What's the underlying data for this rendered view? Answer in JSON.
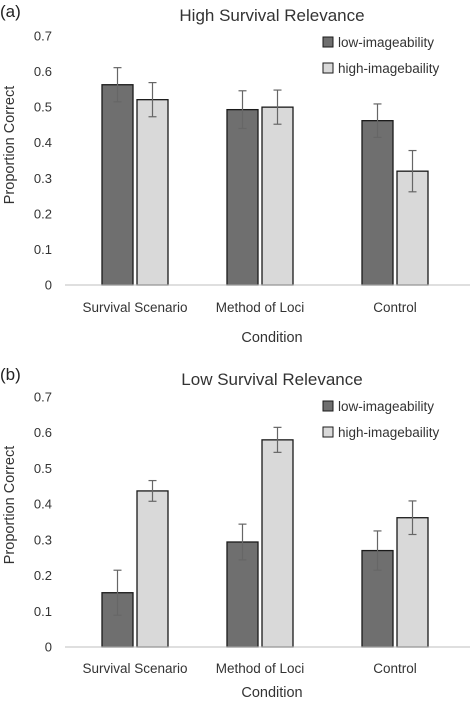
{
  "colors": {
    "low": "#6f6f6f",
    "high": "#d9d9d9",
    "bar_stroke": "#1a1a1a",
    "axis": "#bfbfbf",
    "error_bar": "#666666"
  },
  "chart_data": [
    {
      "panel_label": "(a)",
      "type": "bar",
      "title": "High Survival Relevance",
      "xlabel": "Condition",
      "ylabel": "Proportion Correct",
      "ylim": [
        0,
        0.7
      ],
      "yticks": [
        "0",
        "0.1",
        "0.2",
        "0.3",
        "0.4",
        "0.5",
        "0.6",
        "0.7"
      ],
      "categories": [
        "Survival Scenario",
        "Method of Loci",
        "Control"
      ],
      "legend_position": "top-right",
      "grid": false,
      "series": [
        {
          "name": "low-imageability",
          "color_key": "low",
          "values": [
            0.563,
            0.493,
            0.462
          ],
          "errors": [
            0.048,
            0.053,
            0.047
          ]
        },
        {
          "name": "high-imagebaility",
          "color_key": "high",
          "values": [
            0.521,
            0.5,
            0.32
          ],
          "errors": [
            0.048,
            0.048,
            0.058
          ]
        }
      ]
    },
    {
      "panel_label": "(b)",
      "type": "bar",
      "title": "Low Survival Relevance",
      "xlabel": "Condition",
      "ylabel": "Proportion Correct",
      "ylim": [
        0,
        0.7
      ],
      "yticks": [
        "0",
        "0.1",
        "0.2",
        "0.3",
        "0.4",
        "0.5",
        "0.6",
        "0.7"
      ],
      "categories": [
        "Survival Scenario",
        "Method of Loci",
        "Control"
      ],
      "legend_position": "top-right",
      "grid": false,
      "series": [
        {
          "name": "low-imageability",
          "color_key": "low",
          "values": [
            0.152,
            0.294,
            0.27
          ],
          "errors": [
            0.063,
            0.05,
            0.055
          ]
        },
        {
          "name": "high-imagebaility",
          "color_key": "high",
          "values": [
            0.437,
            0.58,
            0.362
          ],
          "errors": [
            0.029,
            0.035,
            0.047
          ]
        }
      ]
    }
  ]
}
